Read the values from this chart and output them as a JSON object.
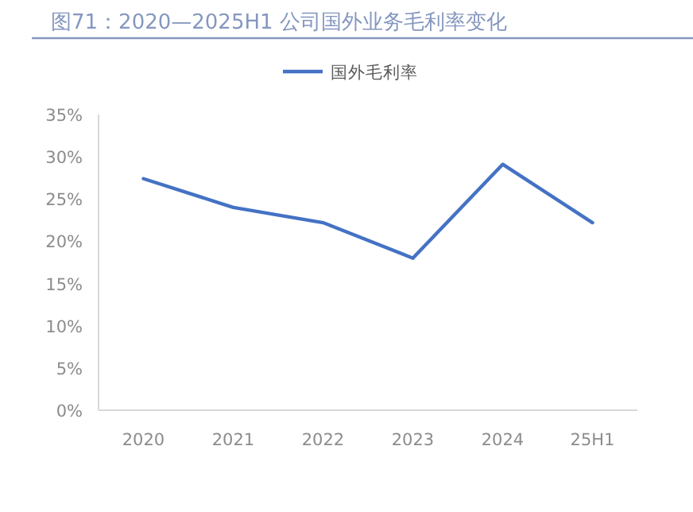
{
  "chart_data": {
    "type": "line",
    "title": "图71：2020—2025H1 公司国外业务毛利率变化",
    "categories": [
      "2020",
      "2021",
      "2022",
      "2023",
      "2024",
      "25H1"
    ],
    "series": [
      {
        "name": "国外毛利率",
        "color": "#4472c4",
        "values": [
          27.4,
          24.0,
          22.2,
          18.0,
          29.1,
          22.2
        ]
      }
    ],
    "ylim": [
      0,
      35
    ],
    "yticks": [
      {
        "value": 0,
        "label": "0%"
      },
      {
        "value": 5,
        "label": "5%"
      },
      {
        "value": 10,
        "label": "10%"
      },
      {
        "value": 15,
        "label": "15%"
      },
      {
        "value": 20,
        "label": "20%"
      },
      {
        "value": 25,
        "label": "25%"
      },
      {
        "value": 30,
        "label": "30%"
      },
      {
        "value": 35,
        "label": "35%"
      }
    ],
    "grid": false,
    "legend": "top",
    "marker": "none",
    "line_style": "solid"
  }
}
